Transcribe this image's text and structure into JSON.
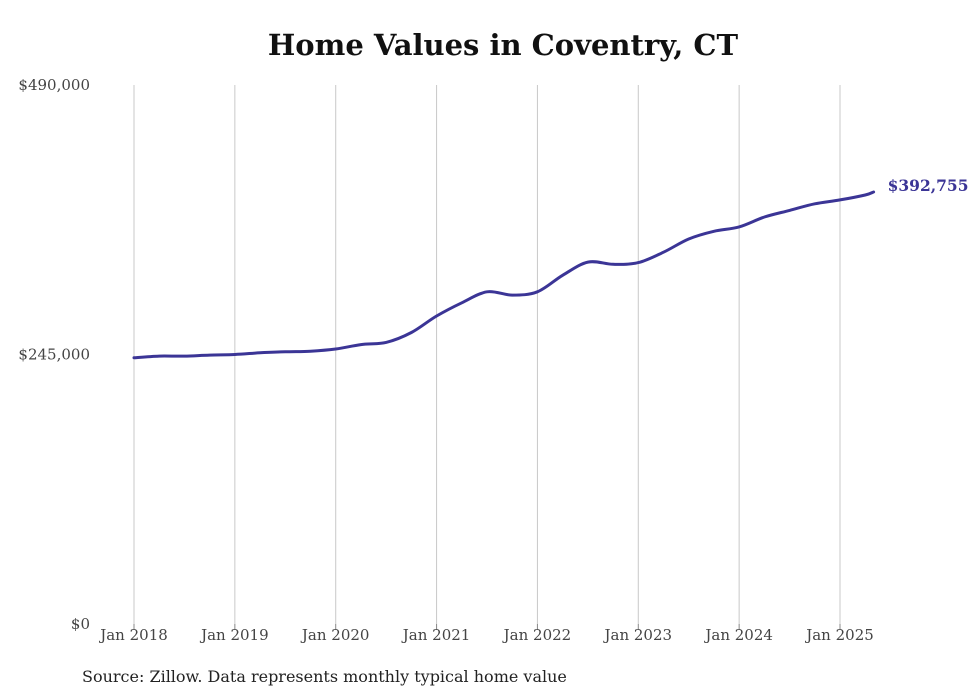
{
  "chart_data": {
    "type": "line",
    "title": "Home Values in Coventry, CT",
    "source_note": "Source: Zillow. Data represents monthly typical home value",
    "ylim": [
      0,
      490000
    ],
    "y_ticks": [
      {
        "value": 0,
        "label": "$0"
      },
      {
        "value": 245000,
        "label": "$245,000"
      },
      {
        "value": 490000,
        "label": "$490,000"
      }
    ],
    "x_ticks": [
      "Jan 2018",
      "Jan 2019",
      "Jan 2020",
      "Jan 2021",
      "Jan 2022",
      "Jan 2023",
      "Jan 2024",
      "Jan 2025"
    ],
    "grid": "vertical",
    "line_color": "#3b3596",
    "end_label": "$392,755",
    "series": [
      {
        "points": [
          {
            "x": "2018-01",
            "y": 242000
          },
          {
            "x": "2018-04",
            "y": 243500
          },
          {
            "x": "2018-07",
            "y": 243500
          },
          {
            "x": "2018-10",
            "y": 244500
          },
          {
            "x": "2019-01",
            "y": 245000
          },
          {
            "x": "2019-04",
            "y": 246500
          },
          {
            "x": "2019-07",
            "y": 247500
          },
          {
            "x": "2019-10",
            "y": 248000
          },
          {
            "x": "2020-01",
            "y": 250000
          },
          {
            "x": "2020-04",
            "y": 254000
          },
          {
            "x": "2020-07",
            "y": 256000
          },
          {
            "x": "2020-10",
            "y": 265000
          },
          {
            "x": "2021-01",
            "y": 280000
          },
          {
            "x": "2021-04",
            "y": 292000
          },
          {
            "x": "2021-07",
            "y": 302000
          },
          {
            "x": "2021-10",
            "y": 299000
          },
          {
            "x": "2022-01",
            "y": 302000
          },
          {
            "x": "2022-04",
            "y": 317000
          },
          {
            "x": "2022-07",
            "y": 329000
          },
          {
            "x": "2022-10",
            "y": 327000
          },
          {
            "x": "2023-01",
            "y": 328500
          },
          {
            "x": "2023-04",
            "y": 338000
          },
          {
            "x": "2023-07",
            "y": 350000
          },
          {
            "x": "2023-10",
            "y": 357000
          },
          {
            "x": "2024-01",
            "y": 361000
          },
          {
            "x": "2024-04",
            "y": 370000
          },
          {
            "x": "2024-07",
            "y": 376000
          },
          {
            "x": "2024-10",
            "y": 382000
          },
          {
            "x": "2025-01",
            "y": 385500
          },
          {
            "x": "2025-04",
            "y": 390000
          },
          {
            "x": "2025-05",
            "y": 392755
          }
        ]
      }
    ]
  }
}
